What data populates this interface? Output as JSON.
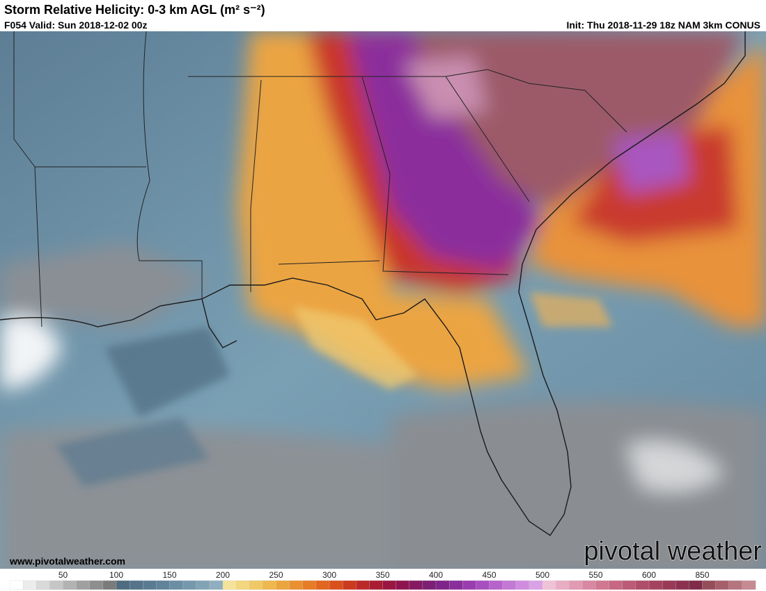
{
  "header": {
    "title": "Storm Relative Helicity: 0-3 km AGL (m² s⁻²)",
    "valid": "F054 Valid: Sun 2018-12-02 00z",
    "init": "Init: Thu 2018-11-29 18z NAM 3km CONUS"
  },
  "watermark": {
    "url": "www.pivotalweather.com",
    "logo": "pivotal weather"
  },
  "colorbar": {
    "labels": [
      "50",
      "100",
      "150",
      "200",
      "250",
      "300",
      "350",
      "400",
      "450",
      "500",
      "550",
      "600",
      "850"
    ],
    "colors": [
      "#ffffff",
      "#ececec",
      "#d9d9d9",
      "#c6c6c6",
      "#b3b3b3",
      "#a0a0a0",
      "#8e8e8e",
      "#7b7b7b",
      "#4f6b80",
      "#557389",
      "#5b7b92",
      "#62849b",
      "#6a8ea4",
      "#7598ad",
      "#82a3b6",
      "#90aebf",
      "#f5e39a",
      "#f2d77e",
      "#f0c865",
      "#eeb84e",
      "#eca43f",
      "#ea9030",
      "#e67c26",
      "#e1661f",
      "#d9501c",
      "#cc3a20",
      "#bb2a28",
      "#a91d33",
      "#9a1640",
      "#8e1450",
      "#851a62",
      "#7d1f74",
      "#7f2488",
      "#8a2e9c",
      "#9a3db0",
      "#a84fc0",
      "#b763cc",
      "#c478d6",
      "#d08ddf",
      "#daa2e6",
      "#f0c2d6",
      "#e8adc3",
      "#e09ab2",
      "#d888a2",
      "#d07792",
      "#c66884",
      "#bc5a77",
      "#b04d6b",
      "#a44360",
      "#983a57",
      "#8c3250",
      "#7f2b49",
      "#964d5a",
      "#a6606b",
      "#b6757e",
      "#c68a92"
    ]
  }
}
